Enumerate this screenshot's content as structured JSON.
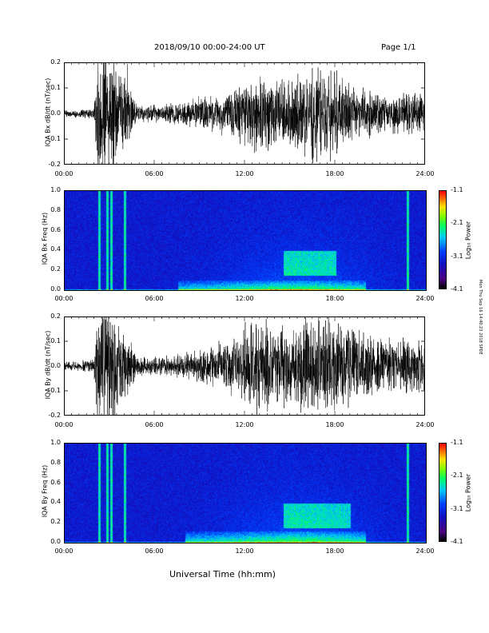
{
  "header": {
    "title": "2018/09/10  00:00-24:00 UT",
    "page": "Page 1/1"
  },
  "xaxis": {
    "label": "Universal Time (hh:mm)",
    "ticks": [
      "00:00",
      "06:00",
      "12:00",
      "18:00",
      "24:00"
    ],
    "range_hours": [
      0,
      24
    ]
  },
  "side_note": "Mon Thu Sep 16 14:40:23 2018 SPDE",
  "colorbar": {
    "label": "Log₁₀ Power",
    "ticks": [
      "-1.1",
      "-2.1",
      "-3.1",
      "-4.1"
    ],
    "range": [
      -4.1,
      -1.1
    ]
  },
  "chart_data": [
    {
      "type": "line",
      "ylabel": "IQA Bx dB/dt (nT/sec)",
      "yticks": [
        "0.2",
        "0.1",
        "0.0",
        "-0.1",
        "-0.2"
      ],
      "ylim": [
        -0.2,
        0.2
      ],
      "x_hours": [
        0,
        1,
        2,
        2.3,
        3,
        4,
        5,
        6,
        7,
        8,
        9,
        10,
        11,
        12,
        13,
        14,
        15,
        16,
        17,
        18,
        19,
        20,
        21,
        22,
        23,
        24
      ],
      "amplitude": [
        0.012,
        0.015,
        0.02,
        0.25,
        0.25,
        0.15,
        0.03,
        0.03,
        0.04,
        0.05,
        0.06,
        0.07,
        0.09,
        0.12,
        0.14,
        0.12,
        0.13,
        0.15,
        0.18,
        0.16,
        0.11,
        0.09,
        0.08,
        0.07,
        0.08,
        0.08
      ]
    },
    {
      "type": "heatmap",
      "ylabel": "IQA Bx Freq (Hz)",
      "yticks": [
        "1.0",
        "0.8",
        "0.6",
        "0.4",
        "0.2",
        "0.0"
      ],
      "ylim": [
        0,
        1.0
      ],
      "features": [
        {
          "kind": "broadband_lines",
          "x_hours": [
            2.3,
            2.8,
            3.1,
            4.0,
            22.8
          ]
        },
        {
          "kind": "low_freq_band",
          "x_hours": [
            7.5,
            20
          ],
          "f_max_hz": 0.1
        },
        {
          "kind": "enhancement",
          "x_hours": [
            14.5,
            18
          ],
          "f_hz": [
            0.2,
            0.35
          ]
        }
      ]
    },
    {
      "type": "line",
      "ylabel": "IQA By dB/dt (nT/sec)",
      "yticks": [
        "0.2",
        "0.1",
        "0.0",
        "-0.1",
        "-0.2"
      ],
      "ylim": [
        -0.2,
        0.2
      ],
      "x_hours": [
        0,
        1,
        2,
        2.3,
        3,
        4,
        5,
        6,
        7,
        8,
        9,
        10,
        11,
        12,
        13,
        14,
        15,
        16,
        17,
        18,
        19,
        20,
        21,
        22,
        23,
        24
      ],
      "amplitude": [
        0.015,
        0.02,
        0.03,
        0.25,
        0.25,
        0.15,
        0.035,
        0.035,
        0.04,
        0.05,
        0.06,
        0.08,
        0.1,
        0.15,
        0.2,
        0.16,
        0.15,
        0.18,
        0.2,
        0.17,
        0.14,
        0.13,
        0.12,
        0.1,
        0.11,
        0.1
      ]
    },
    {
      "type": "heatmap",
      "ylabel": "IQA By Freq (Hz)",
      "yticks": [
        "1.0",
        "0.8",
        "0.6",
        "0.4",
        "0.2",
        "0.0"
      ],
      "ylim": [
        0,
        1.0
      ],
      "features": [
        {
          "kind": "broadband_lines",
          "x_hours": [
            2.3,
            2.8,
            3.1,
            4.0,
            22.8
          ]
        },
        {
          "kind": "low_freq_band",
          "x_hours": [
            8,
            20
          ],
          "f_max_hz": 0.12
        },
        {
          "kind": "enhancement",
          "x_hours": [
            14.5,
            19
          ],
          "f_hz": [
            0.2,
            0.35
          ]
        }
      ]
    }
  ]
}
